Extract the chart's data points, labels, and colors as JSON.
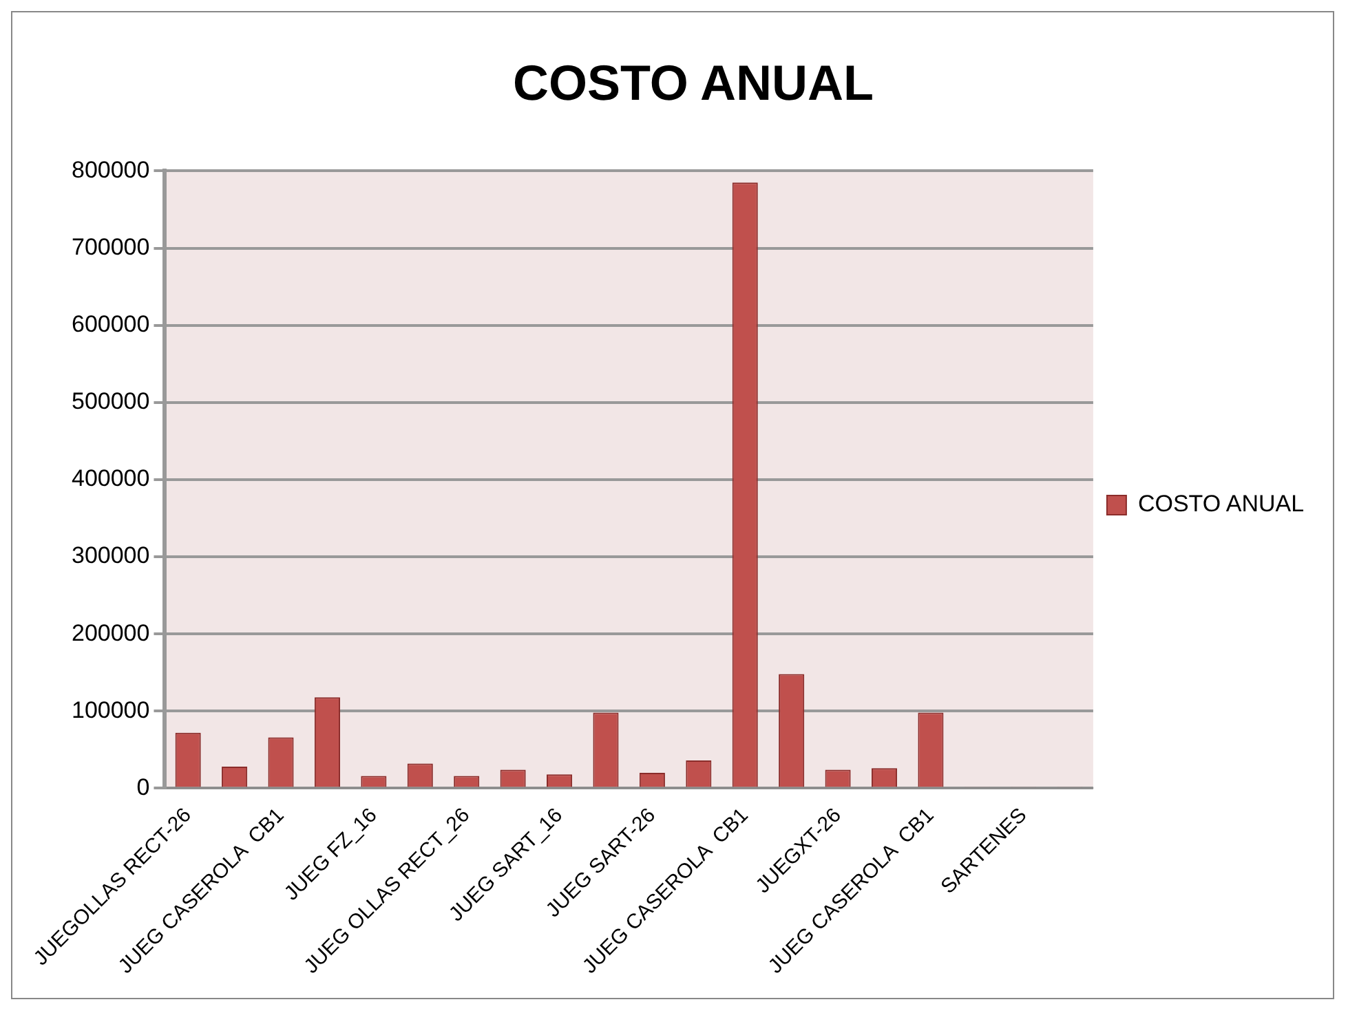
{
  "chart_data": {
    "type": "bar",
    "title": "COSTO ANUAL",
    "categories": [
      "JUEGOLLAS RECT-26",
      null,
      "JUEG CASEROLA  CB1",
      null,
      "JUEG FZ_16",
      null,
      "JUEG OLLAS RECT_26",
      null,
      "JUEG SART_16",
      null,
      "JUEG SART-26",
      null,
      "JUEG CASEROLA  CB1",
      null,
      "JUEGXT-26",
      null,
      "JUEG CASEROLA  CB1",
      null,
      "SARTENES",
      null
    ],
    "series": [
      {
        "name": "COSTO ANUAL",
        "color": "#c0504d",
        "values": [
          72000,
          28000,
          66000,
          118000,
          16000,
          32000,
          16000,
          24000,
          18000,
          98000,
          20000,
          36000,
          785000,
          148000,
          24000,
          26000,
          98000,
          2000,
          2000,
          2000
        ]
      }
    ],
    "ylim": [
      0,
      800000
    ],
    "yticks": [
      0,
      100000,
      200000,
      300000,
      400000,
      500000,
      600000,
      700000,
      800000
    ],
    "grid": "y",
    "legend": "right"
  }
}
